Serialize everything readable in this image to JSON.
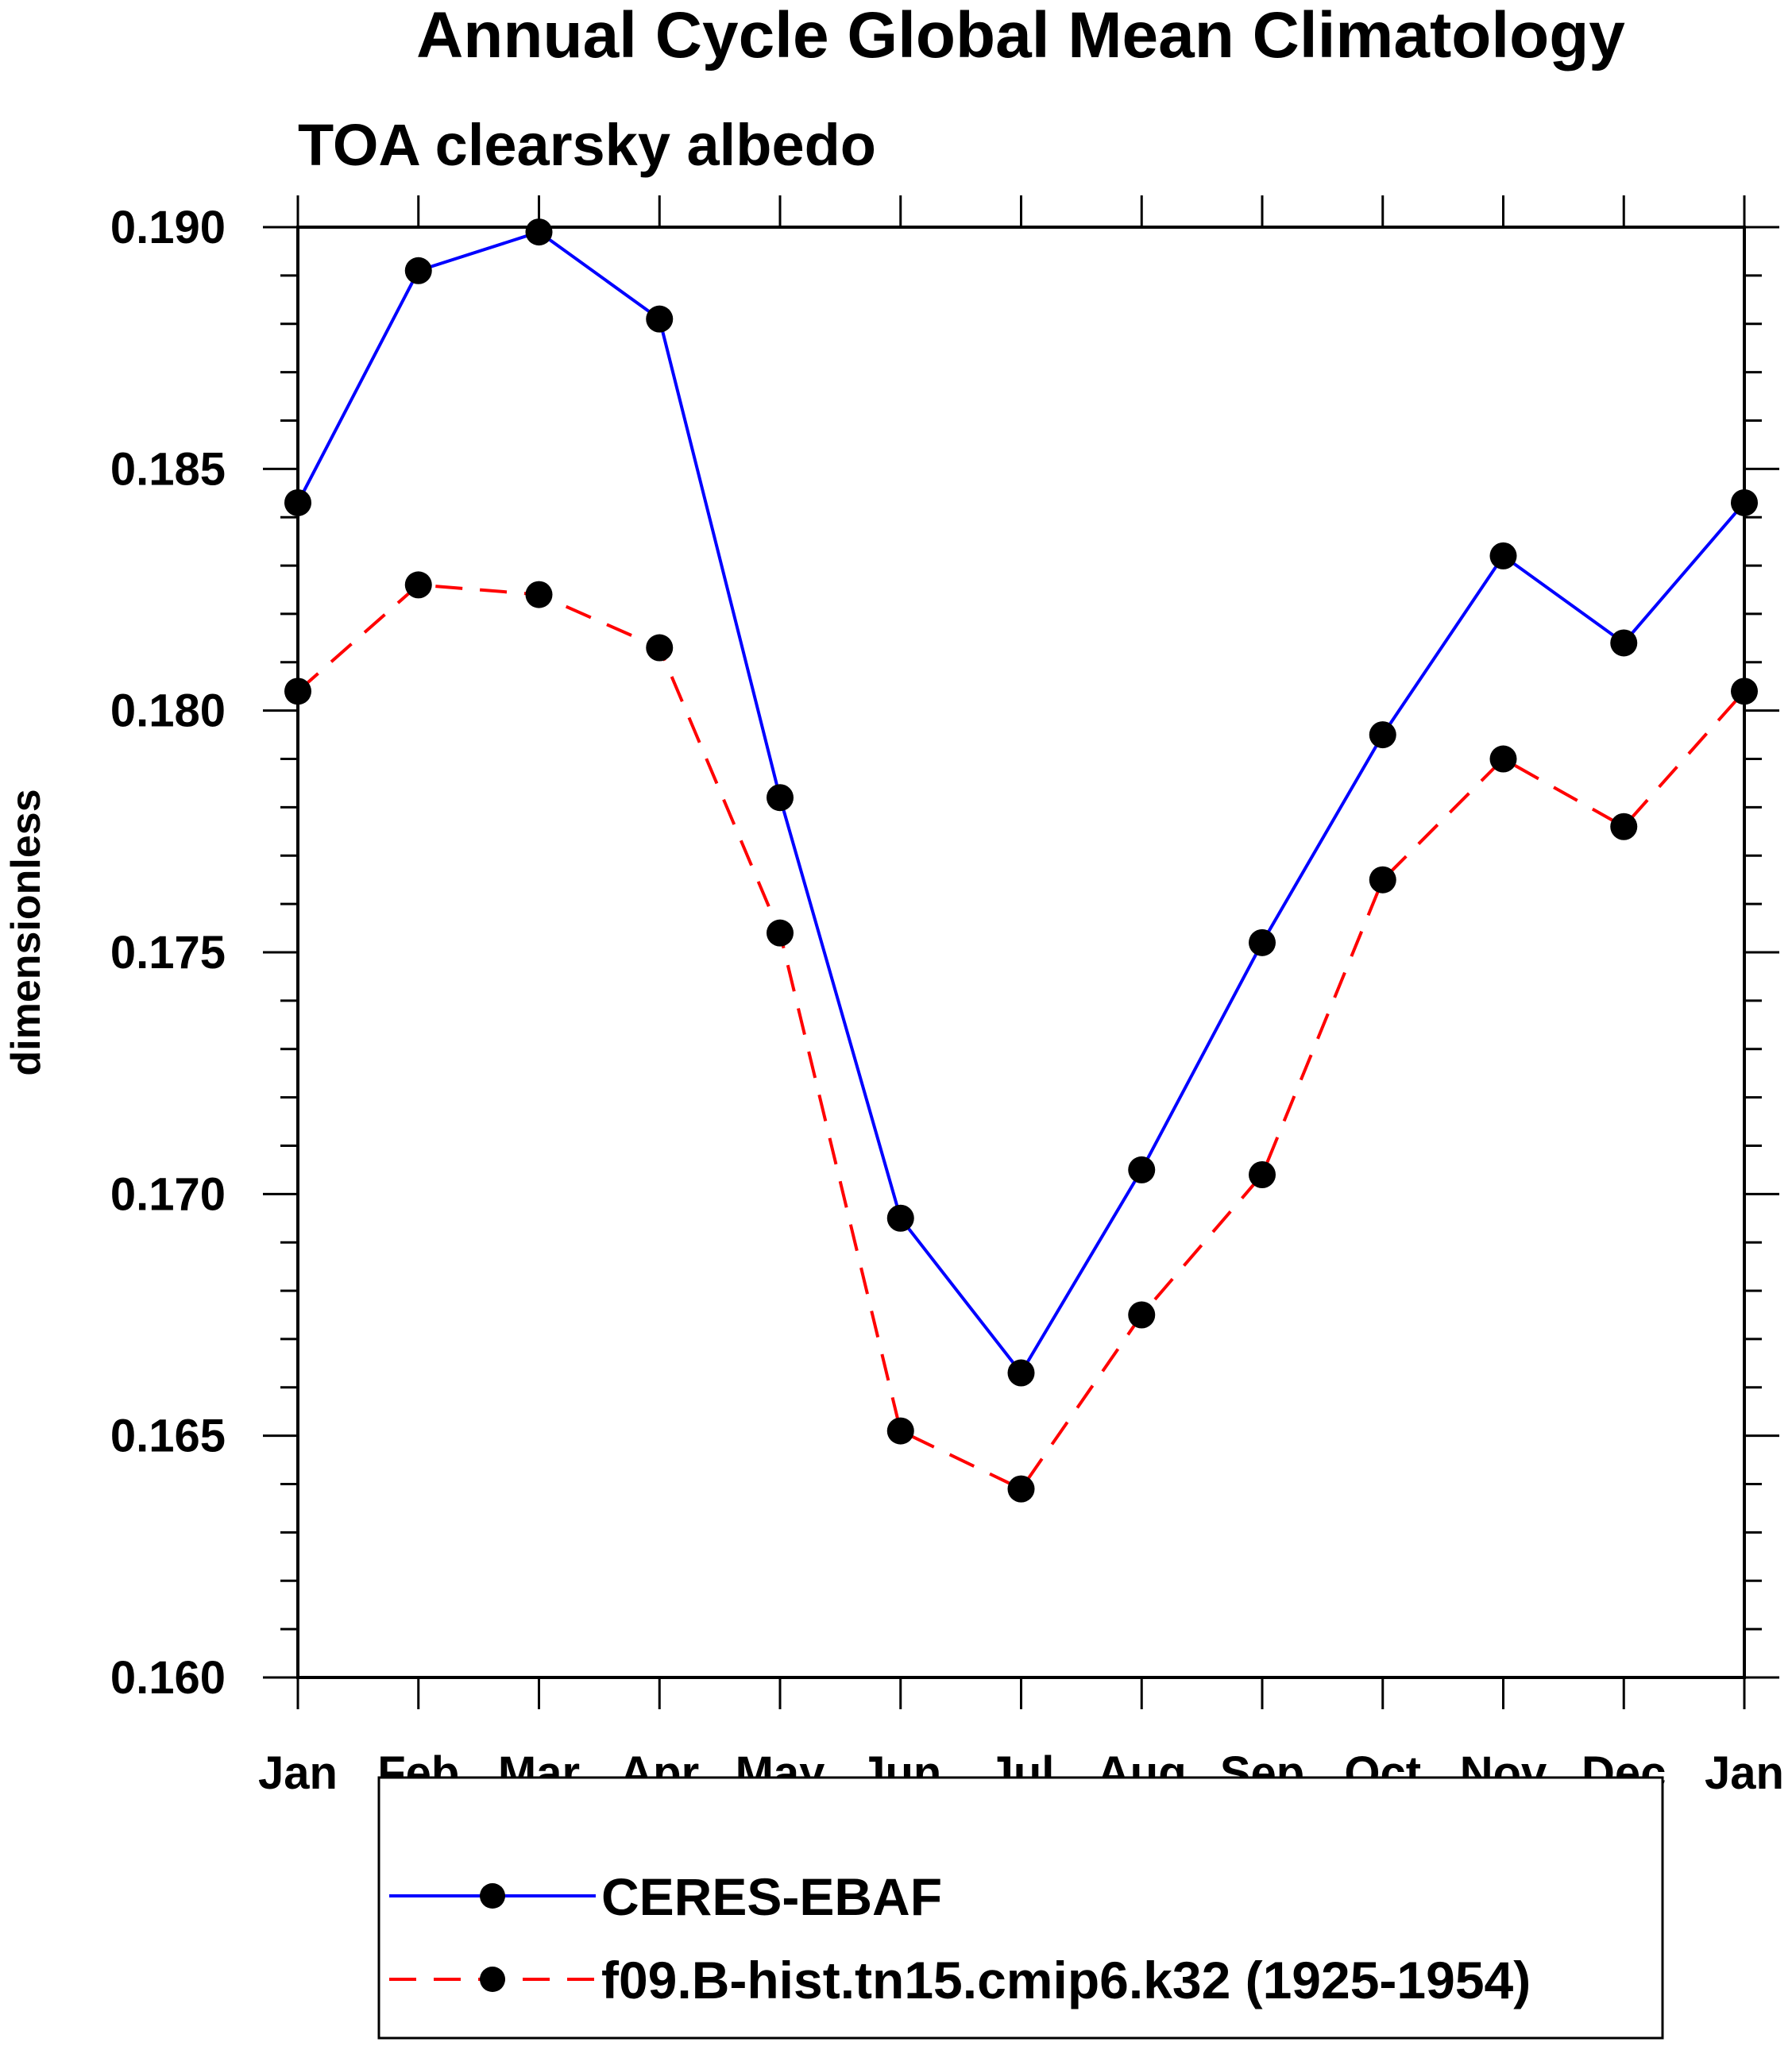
{
  "chart_data": {
    "type": "line",
    "title": "Annual Cycle Global Mean Climatology",
    "subtitle": "TOA clearsky albedo",
    "xlabel": "",
    "ylabel": "dimensionless",
    "ylim": [
      0.16,
      0.19
    ],
    "yticks": [
      "0.160",
      "0.165",
      "0.170",
      "0.175",
      "0.180",
      "0.185",
      "0.190"
    ],
    "categories": [
      "Jan",
      "Feb",
      "Mar",
      "Apr",
      "May",
      "Jun",
      "Jul",
      "Aug",
      "Sep",
      "Oct",
      "Nov",
      "Dec",
      "Jan"
    ],
    "grid": false,
    "legend_position": "bottom",
    "series": [
      {
        "name": "CERES-EBAF",
        "color": "#0000ff",
        "line_style": "solid",
        "marker": "filled-circle",
        "values": [
          0.1843,
          0.1891,
          0.1899,
          0.1881,
          0.1782,
          0.1695,
          0.1663,
          0.1705,
          0.1752,
          0.1795,
          0.1832,
          0.1814,
          0.1843
        ]
      },
      {
        "name": "f09.B-hist.tn15.cmip6.k32 (1925-1954)",
        "color": "#ff0000",
        "line_style": "dashed",
        "marker": "filled-circle",
        "values": [
          0.1804,
          0.1826,
          0.1824,
          0.1813,
          0.1754,
          0.1651,
          0.1639,
          0.1675,
          0.1704,
          0.1765,
          0.179,
          0.1776,
          0.1804
        ]
      }
    ]
  }
}
